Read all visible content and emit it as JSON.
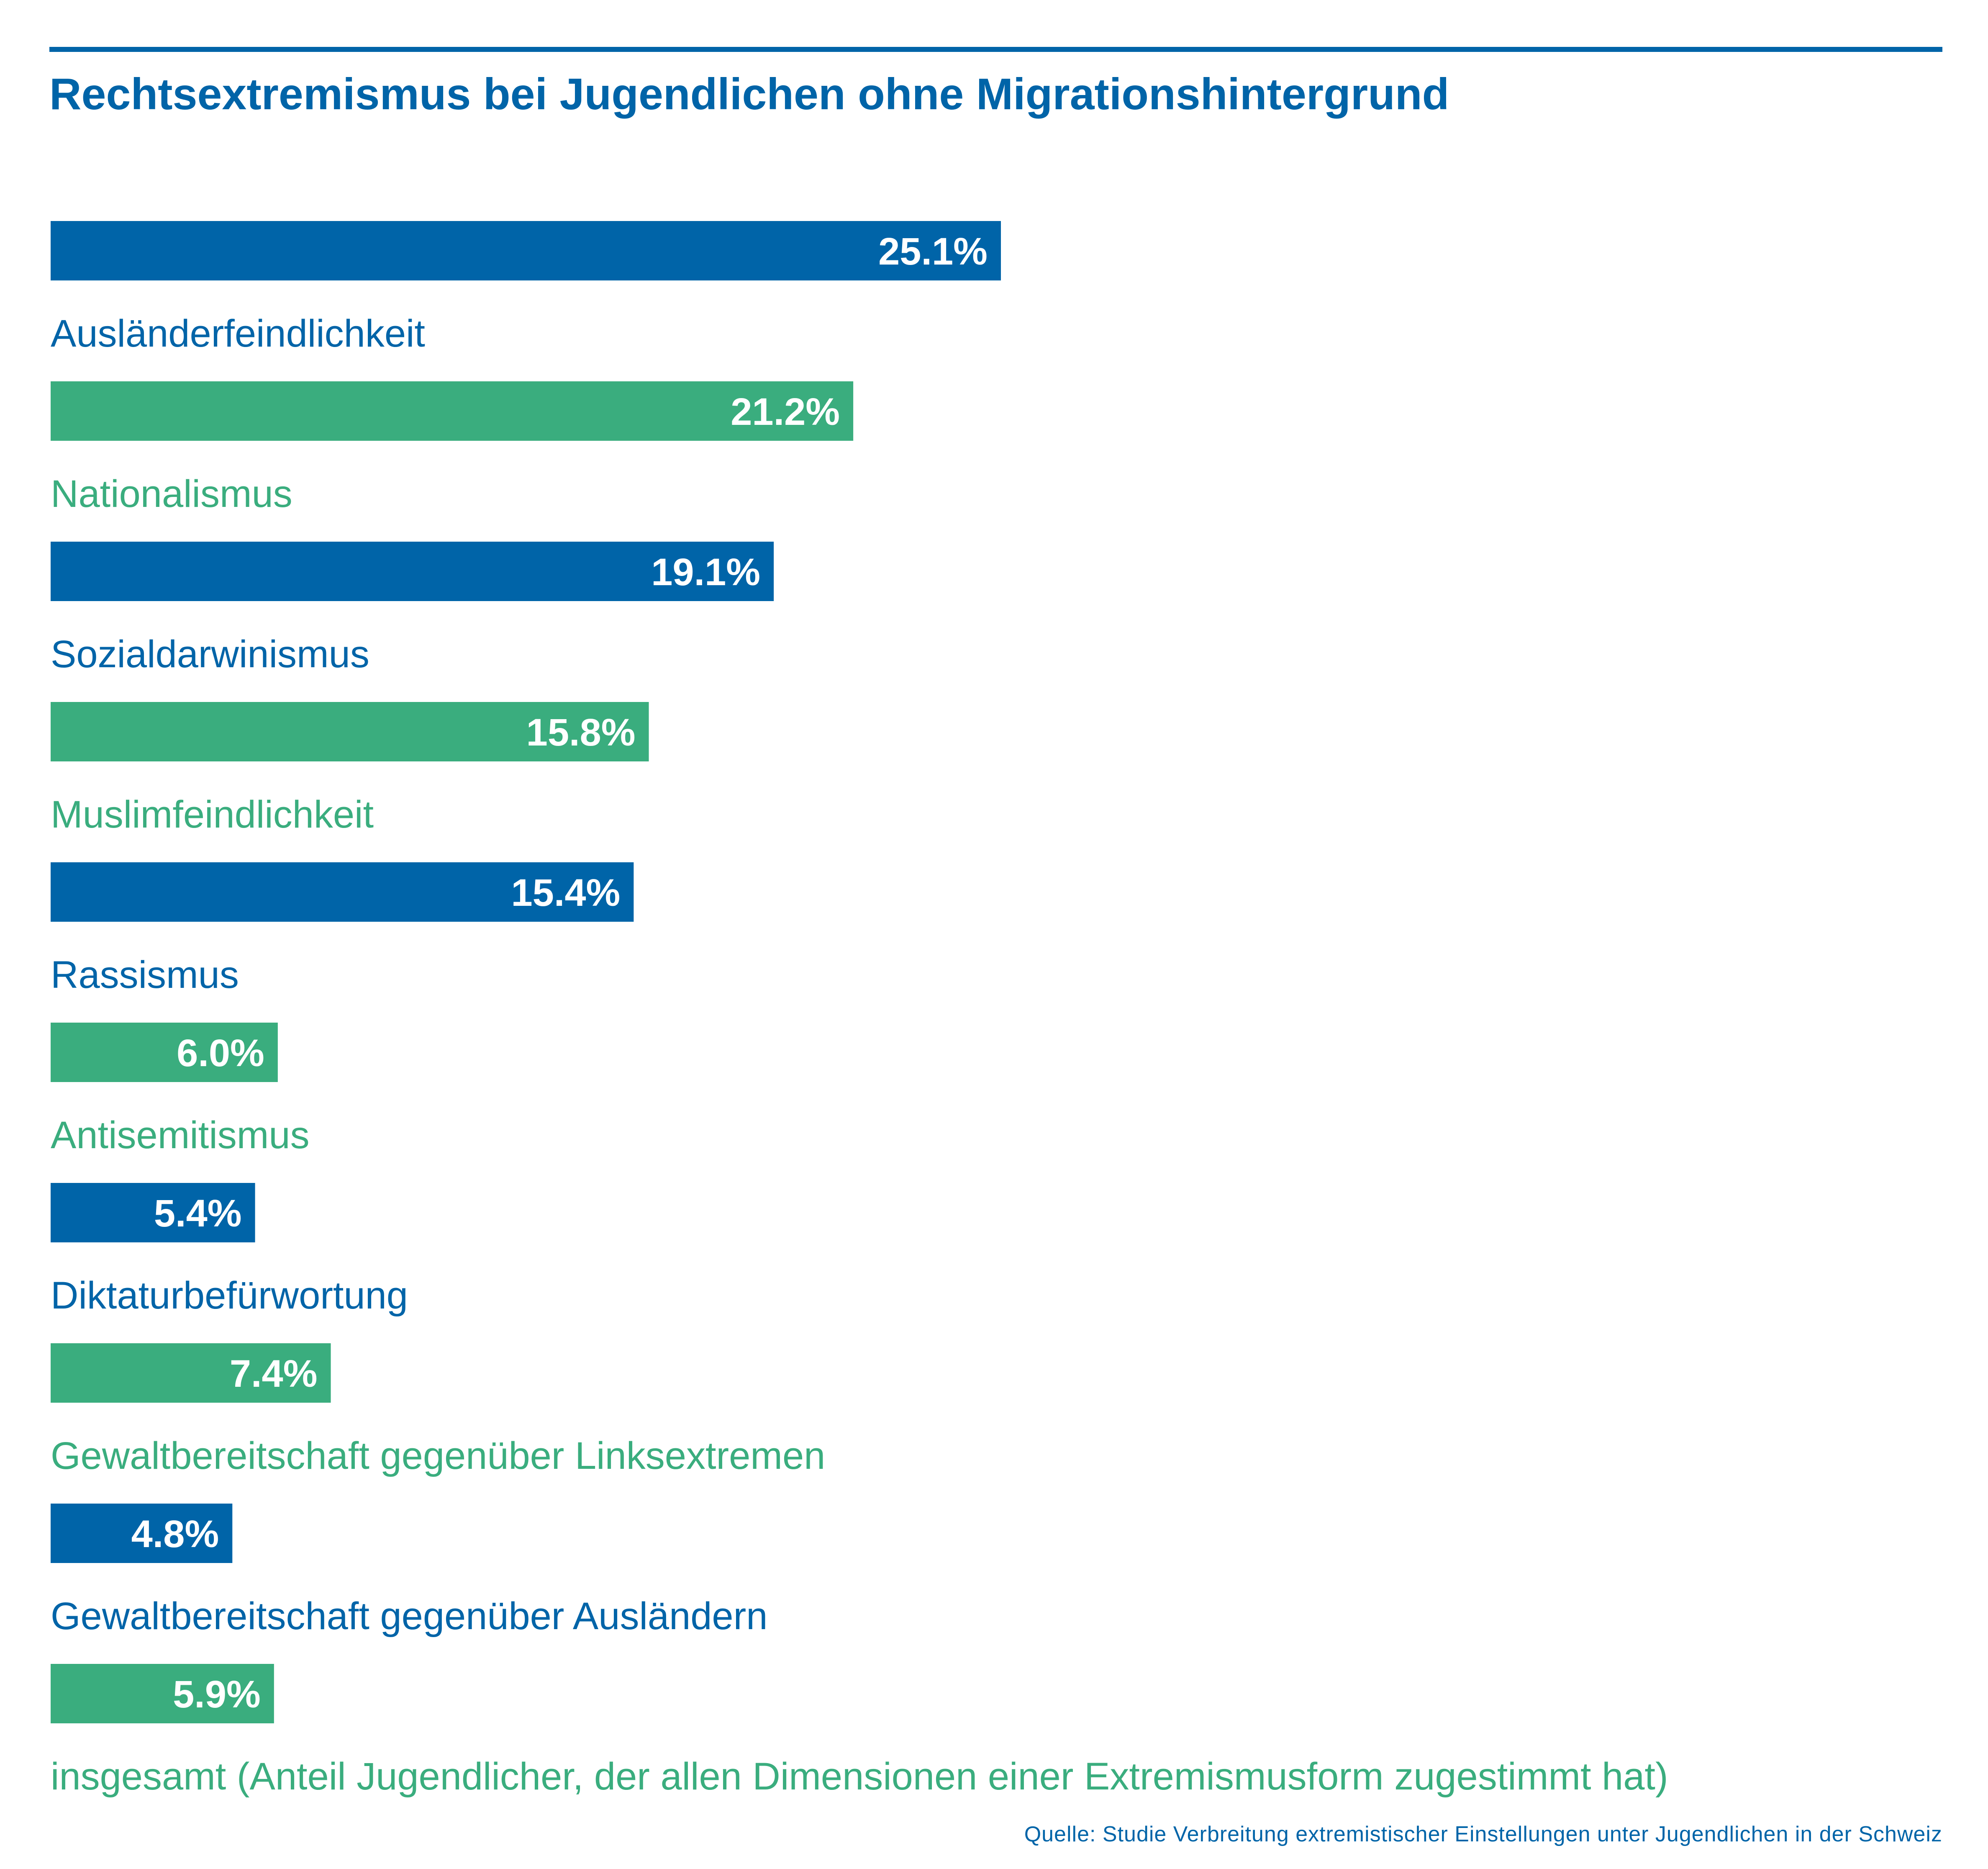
{
  "colors": {
    "blue": "#0064a8",
    "green": "#3aad7e",
    "bar_text": "#ffffff"
  },
  "chart_data": {
    "type": "bar",
    "orientation": "horizontal",
    "title": "Rechtsextremismus bei Jugendlichen ohne Migrationshintergrund",
    "categories": [
      "Ausländerfeindlichkeit",
      "Nationalismus",
      "Sozialdarwinismus",
      "Muslimfeindlichkeit",
      "Rassismus",
      "Antisemitismus",
      "Diktaturbefürwortung",
      "Gewaltbereitschaft gegenüber Linksextremen",
      "Gewaltbereitschaft gegenüber Ausländern",
      "insgesamt (Anteil Jugendlicher, der allen Dimensionen einer Extremismusform zugestimmt hat)"
    ],
    "values": [
      25.1,
      21.2,
      19.1,
      15.8,
      15.4,
      6.0,
      5.4,
      7.4,
      4.8,
      5.9
    ],
    "value_labels": [
      "25.1%",
      "21.2%",
      "19.1%",
      "15.8%",
      "15.4%",
      "6.0%",
      "5.4%",
      "7.4%",
      "4.8%",
      "5.9%"
    ],
    "bar_colors": [
      "blue",
      "green",
      "blue",
      "green",
      "blue",
      "green",
      "blue",
      "green",
      "blue",
      "green"
    ],
    "unit": "%",
    "grid": false,
    "legend": "none"
  },
  "source": "Quelle: Studie Verbreitung extremistischer Einstellungen unter Jugendlichen in der Schweiz"
}
